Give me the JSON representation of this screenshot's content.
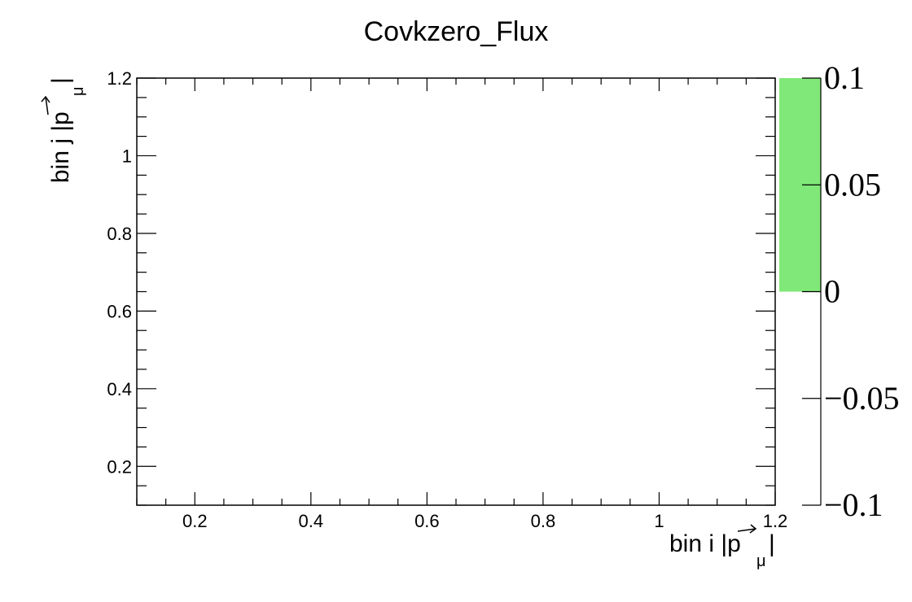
{
  "chart_data": {
    "type": "heatmap",
    "title": "Covkzero_Flux",
    "xlabel": {
      "main": "bin i |",
      "vector": "p",
      "subscript": "μ",
      "close": "|"
    },
    "ylabel": {
      "main": "bin j |",
      "vector": "p",
      "subscript": "μ",
      "close": "|"
    },
    "xlim": [
      0.1,
      1.2
    ],
    "ylim": [
      0.1,
      1.2
    ],
    "x_tick_values": [
      0.2,
      0.4,
      0.6,
      0.8,
      1.0,
      1.2
    ],
    "x_tick_labels": [
      "0.2",
      "0.4",
      "0.6",
      "0.8",
      "1",
      "1.2"
    ],
    "y_tick_values": [
      0.2,
      0.4,
      0.6,
      0.8,
      1.0,
      1.2
    ],
    "y_tick_labels": [
      "0.2",
      "0.4",
      "0.6",
      "0.8",
      "1",
      "1.2"
    ],
    "z_range": [
      -0.1,
      0.1
    ],
    "z_tick_values": [
      -0.1,
      -0.05,
      0,
      0.05,
      0.1
    ],
    "z_tick_labels": [
      "−0.1",
      "−0.05",
      "0",
      "0.05",
      "0.1"
    ],
    "palette_band": {
      "from": 0,
      "to": 0.1,
      "color": "#80e878"
    },
    "cells": [],
    "grid": false,
    "legend": "none"
  }
}
